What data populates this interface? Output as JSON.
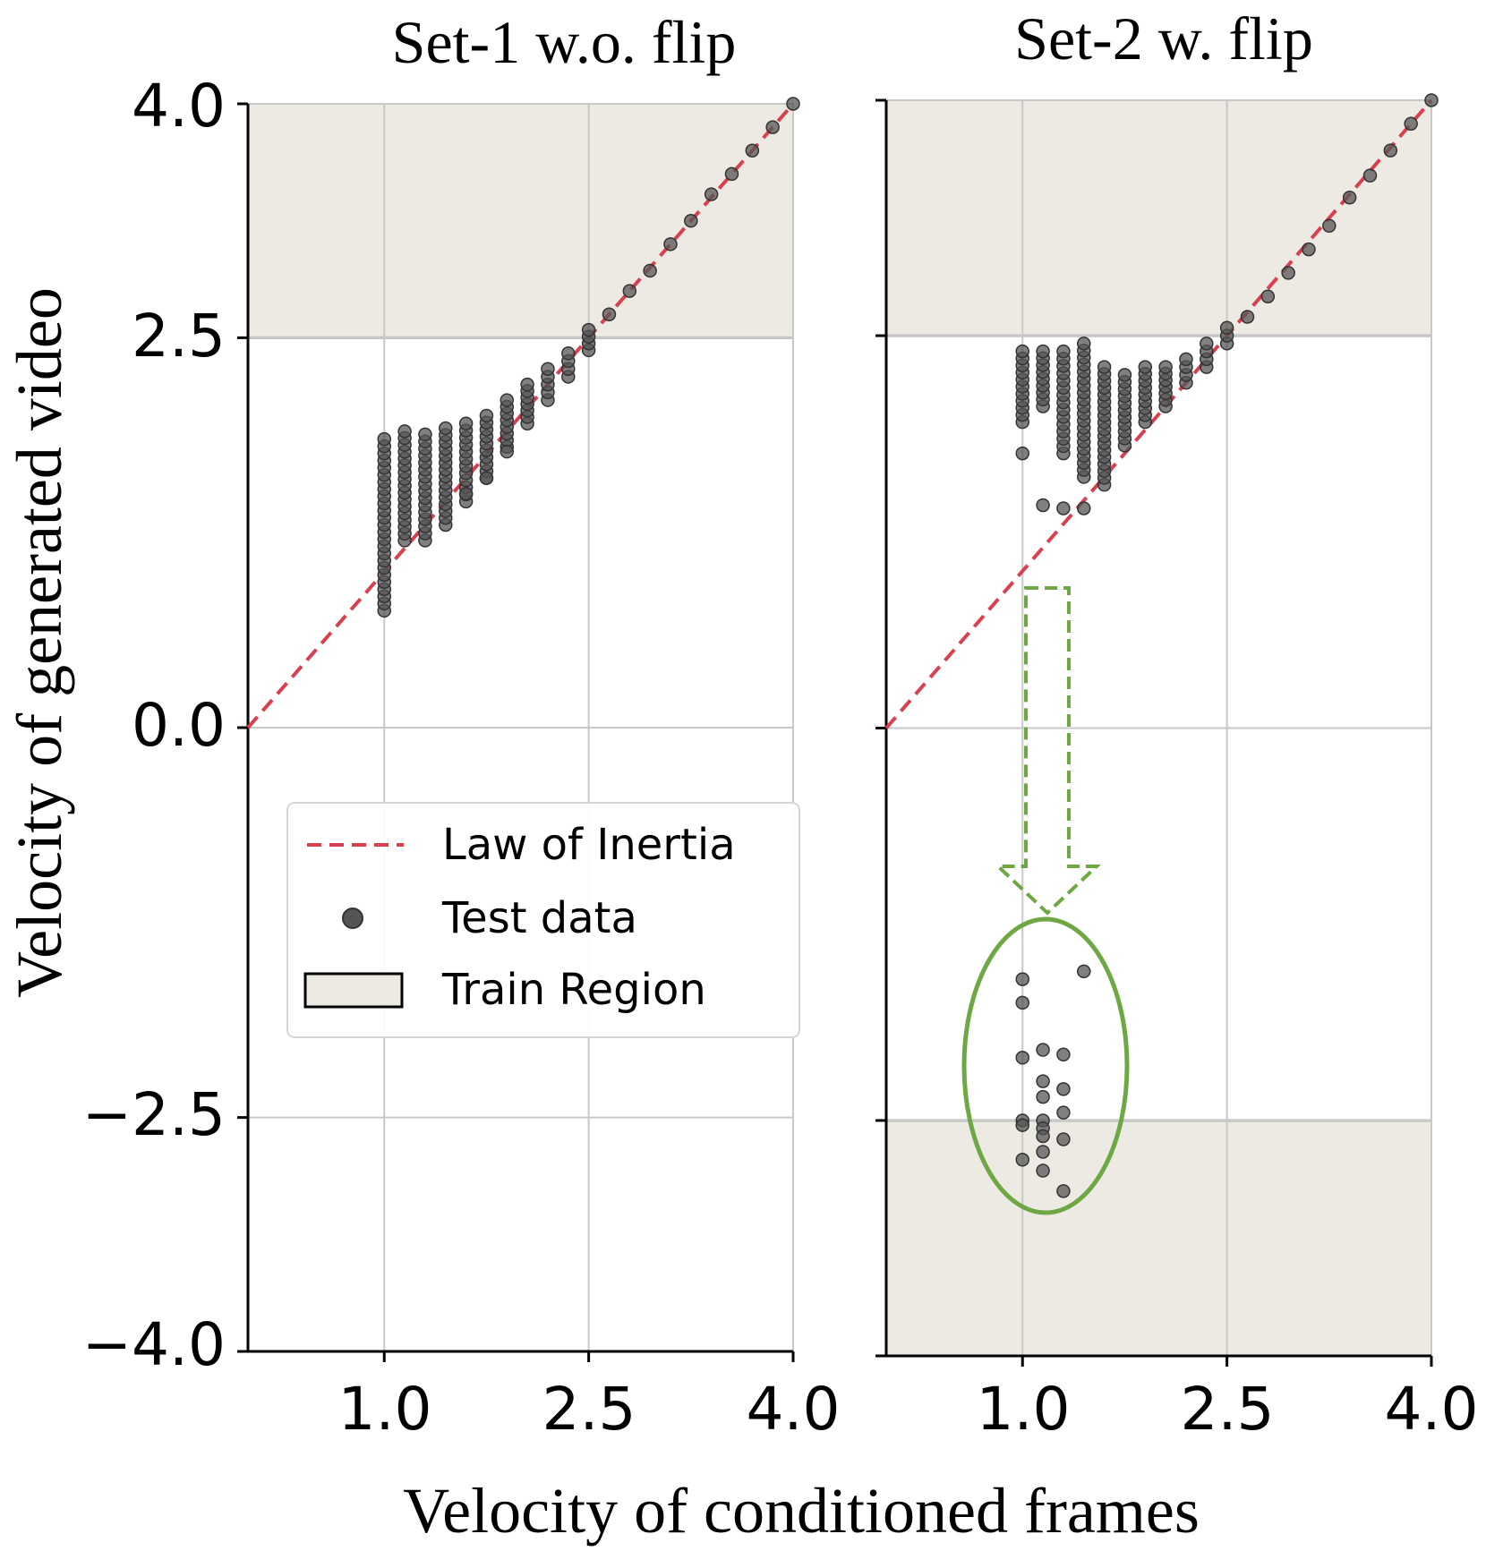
{
  "chart_data": [
    {
      "type": "scatter",
      "title": "Set-1 w.o. flip",
      "xlabel": "Velocity of conditioned frames",
      "ylabel": "Velocity of generated video",
      "xlim": [
        0.0,
        4.0
      ],
      "ylim": [
        -4.0,
        4.0
      ],
      "x_ticks": [
        1.0,
        2.5,
        4.0
      ],
      "x_tick_labels": [
        "1.0",
        "2.5",
        "4.0"
      ],
      "y_ticks": [
        4.0,
        2.5,
        0.0,
        -2.5,
        -4.0
      ],
      "y_tick_labels": [
        "4.0",
        "2.5",
        "0.0",
        "−2.5",
        "−4.0"
      ],
      "grid": true,
      "train_regions": [
        [
          2.5,
          4.0
        ]
      ],
      "reference_line": {
        "name": "Law of Inertia",
        "x": [
          0.0,
          4.0
        ],
        "y": [
          0.0,
          4.0
        ]
      },
      "test_data": {
        "name": "Test data",
        "columns": [
          {
            "x": 1.0,
            "y_min": 0.75,
            "y_max": 1.85
          },
          {
            "x": 1.15,
            "y_min": 1.2,
            "y_max": 1.9
          },
          {
            "x": 1.3,
            "y_min": 1.2,
            "y_max": 1.88
          },
          {
            "x": 1.45,
            "y_min": 1.3,
            "y_max": 1.92
          },
          {
            "x": 1.6,
            "y_min": 1.45,
            "y_max": 1.95
          },
          {
            "x": 1.75,
            "y_min": 1.6,
            "y_max": 2.0
          },
          {
            "x": 1.9,
            "y_min": 1.8,
            "y_max": 2.1
          },
          {
            "x": 2.05,
            "y_min": 1.95,
            "y_max": 2.2
          },
          {
            "x": 2.2,
            "y_min": 2.1,
            "y_max": 2.3
          },
          {
            "x": 2.35,
            "y_min": 2.25,
            "y_max": 2.4
          },
          {
            "x": 2.5,
            "y_min": 2.42,
            "y_max": 2.55
          }
        ],
        "points": [
          [
            1.9,
            1.77
          ],
          [
            1.75,
            1.6
          ],
          [
            1.6,
            1.5
          ],
          [
            2.65,
            2.65
          ],
          [
            2.8,
            2.8
          ],
          [
            2.95,
            2.93
          ],
          [
            3.1,
            3.1
          ],
          [
            3.25,
            3.25
          ],
          [
            3.4,
            3.42
          ],
          [
            3.55,
            3.55
          ],
          [
            3.7,
            3.7
          ],
          [
            3.85,
            3.85
          ],
          [
            4.0,
            4.0
          ]
        ]
      }
    },
    {
      "type": "scatter",
      "title": "Set-2 w. flip",
      "xlabel": "Velocity of conditioned frames",
      "ylabel": "Velocity of generated video",
      "xlim": [
        0.0,
        4.0
      ],
      "ylim": [
        -4.0,
        4.0
      ],
      "x_ticks": [
        1.0,
        2.5,
        4.0
      ],
      "x_tick_labels": [
        "1.0",
        "2.5",
        "4.0"
      ],
      "y_ticks": [
        4.0,
        2.5,
        0.0,
        -2.5,
        -4.0
      ],
      "grid": true,
      "train_regions": [
        [
          2.5,
          4.0
        ],
        [
          -4.0,
          -2.5
        ]
      ],
      "reference_line": {
        "name": "Law of Inertia",
        "x": [
          0.0,
          4.0
        ],
        "y": [
          0.0,
          4.0
        ]
      },
      "test_data": {
        "name": "Test data",
        "columns": [
          {
            "x": 1.0,
            "y_min": 1.95,
            "y_max": 2.4
          },
          {
            "x": 1.15,
            "y_min": 2.05,
            "y_max": 2.4
          },
          {
            "x": 1.3,
            "y_min": 1.75,
            "y_max": 2.4
          },
          {
            "x": 1.45,
            "y_min": 1.6,
            "y_max": 2.45
          },
          {
            "x": 1.6,
            "y_min": 1.55,
            "y_max": 2.3
          },
          {
            "x": 1.75,
            "y_min": 1.8,
            "y_max": 2.25
          },
          {
            "x": 1.9,
            "y_min": 1.95,
            "y_max": 2.3
          },
          {
            "x": 2.05,
            "y_min": 2.05,
            "y_max": 2.3
          },
          {
            "x": 2.2,
            "y_min": 2.2,
            "y_max": 2.35
          },
          {
            "x": 2.35,
            "y_min": 2.3,
            "y_max": 2.45
          },
          {
            "x": 2.5,
            "y_min": 2.45,
            "y_max": 2.55
          }
        ],
        "points": [
          [
            1.0,
            1.75
          ],
          [
            1.15,
            1.42
          ],
          [
            1.3,
            1.4
          ],
          [
            1.45,
            1.4
          ],
          [
            2.65,
            2.62
          ],
          [
            2.8,
            2.75
          ],
          [
            2.95,
            2.9
          ],
          [
            3.1,
            3.05
          ],
          [
            3.25,
            3.2
          ],
          [
            3.4,
            3.38
          ],
          [
            3.55,
            3.52
          ],
          [
            3.7,
            3.68
          ],
          [
            3.85,
            3.85
          ],
          [
            4.0,
            4.0
          ],
          [
            1.0,
            -1.6
          ],
          [
            1.0,
            -1.75
          ],
          [
            1.0,
            -2.1
          ],
          [
            1.0,
            -2.5
          ],
          [
            1.0,
            -2.53
          ],
          [
            1.0,
            -2.75
          ],
          [
            1.15,
            -2.05
          ],
          [
            1.15,
            -2.25
          ],
          [
            1.15,
            -2.35
          ],
          [
            1.15,
            -2.5
          ],
          [
            1.15,
            -2.55
          ],
          [
            1.15,
            -2.6
          ],
          [
            1.15,
            -2.7
          ],
          [
            1.15,
            -2.82
          ],
          [
            1.3,
            -2.08
          ],
          [
            1.3,
            -2.3
          ],
          [
            1.3,
            -2.45
          ],
          [
            1.3,
            -2.62
          ],
          [
            1.3,
            -2.95
          ],
          [
            1.45,
            -1.55
          ]
        ]
      }
    }
  ],
  "legend": {
    "items": [
      {
        "label": "Law of Inertia",
        "kind": "dashed-line"
      },
      {
        "label": "Test data",
        "kind": "marker"
      },
      {
        "label": "Train Region",
        "kind": "patch"
      }
    ]
  },
  "colors": {
    "inertia_line": "#d9404f",
    "train_region": "#edeae3",
    "train_region_edge": "#b5b5b5",
    "marker": "#555555",
    "grid": "#c8c8c8",
    "annotation": "#6ea845"
  }
}
